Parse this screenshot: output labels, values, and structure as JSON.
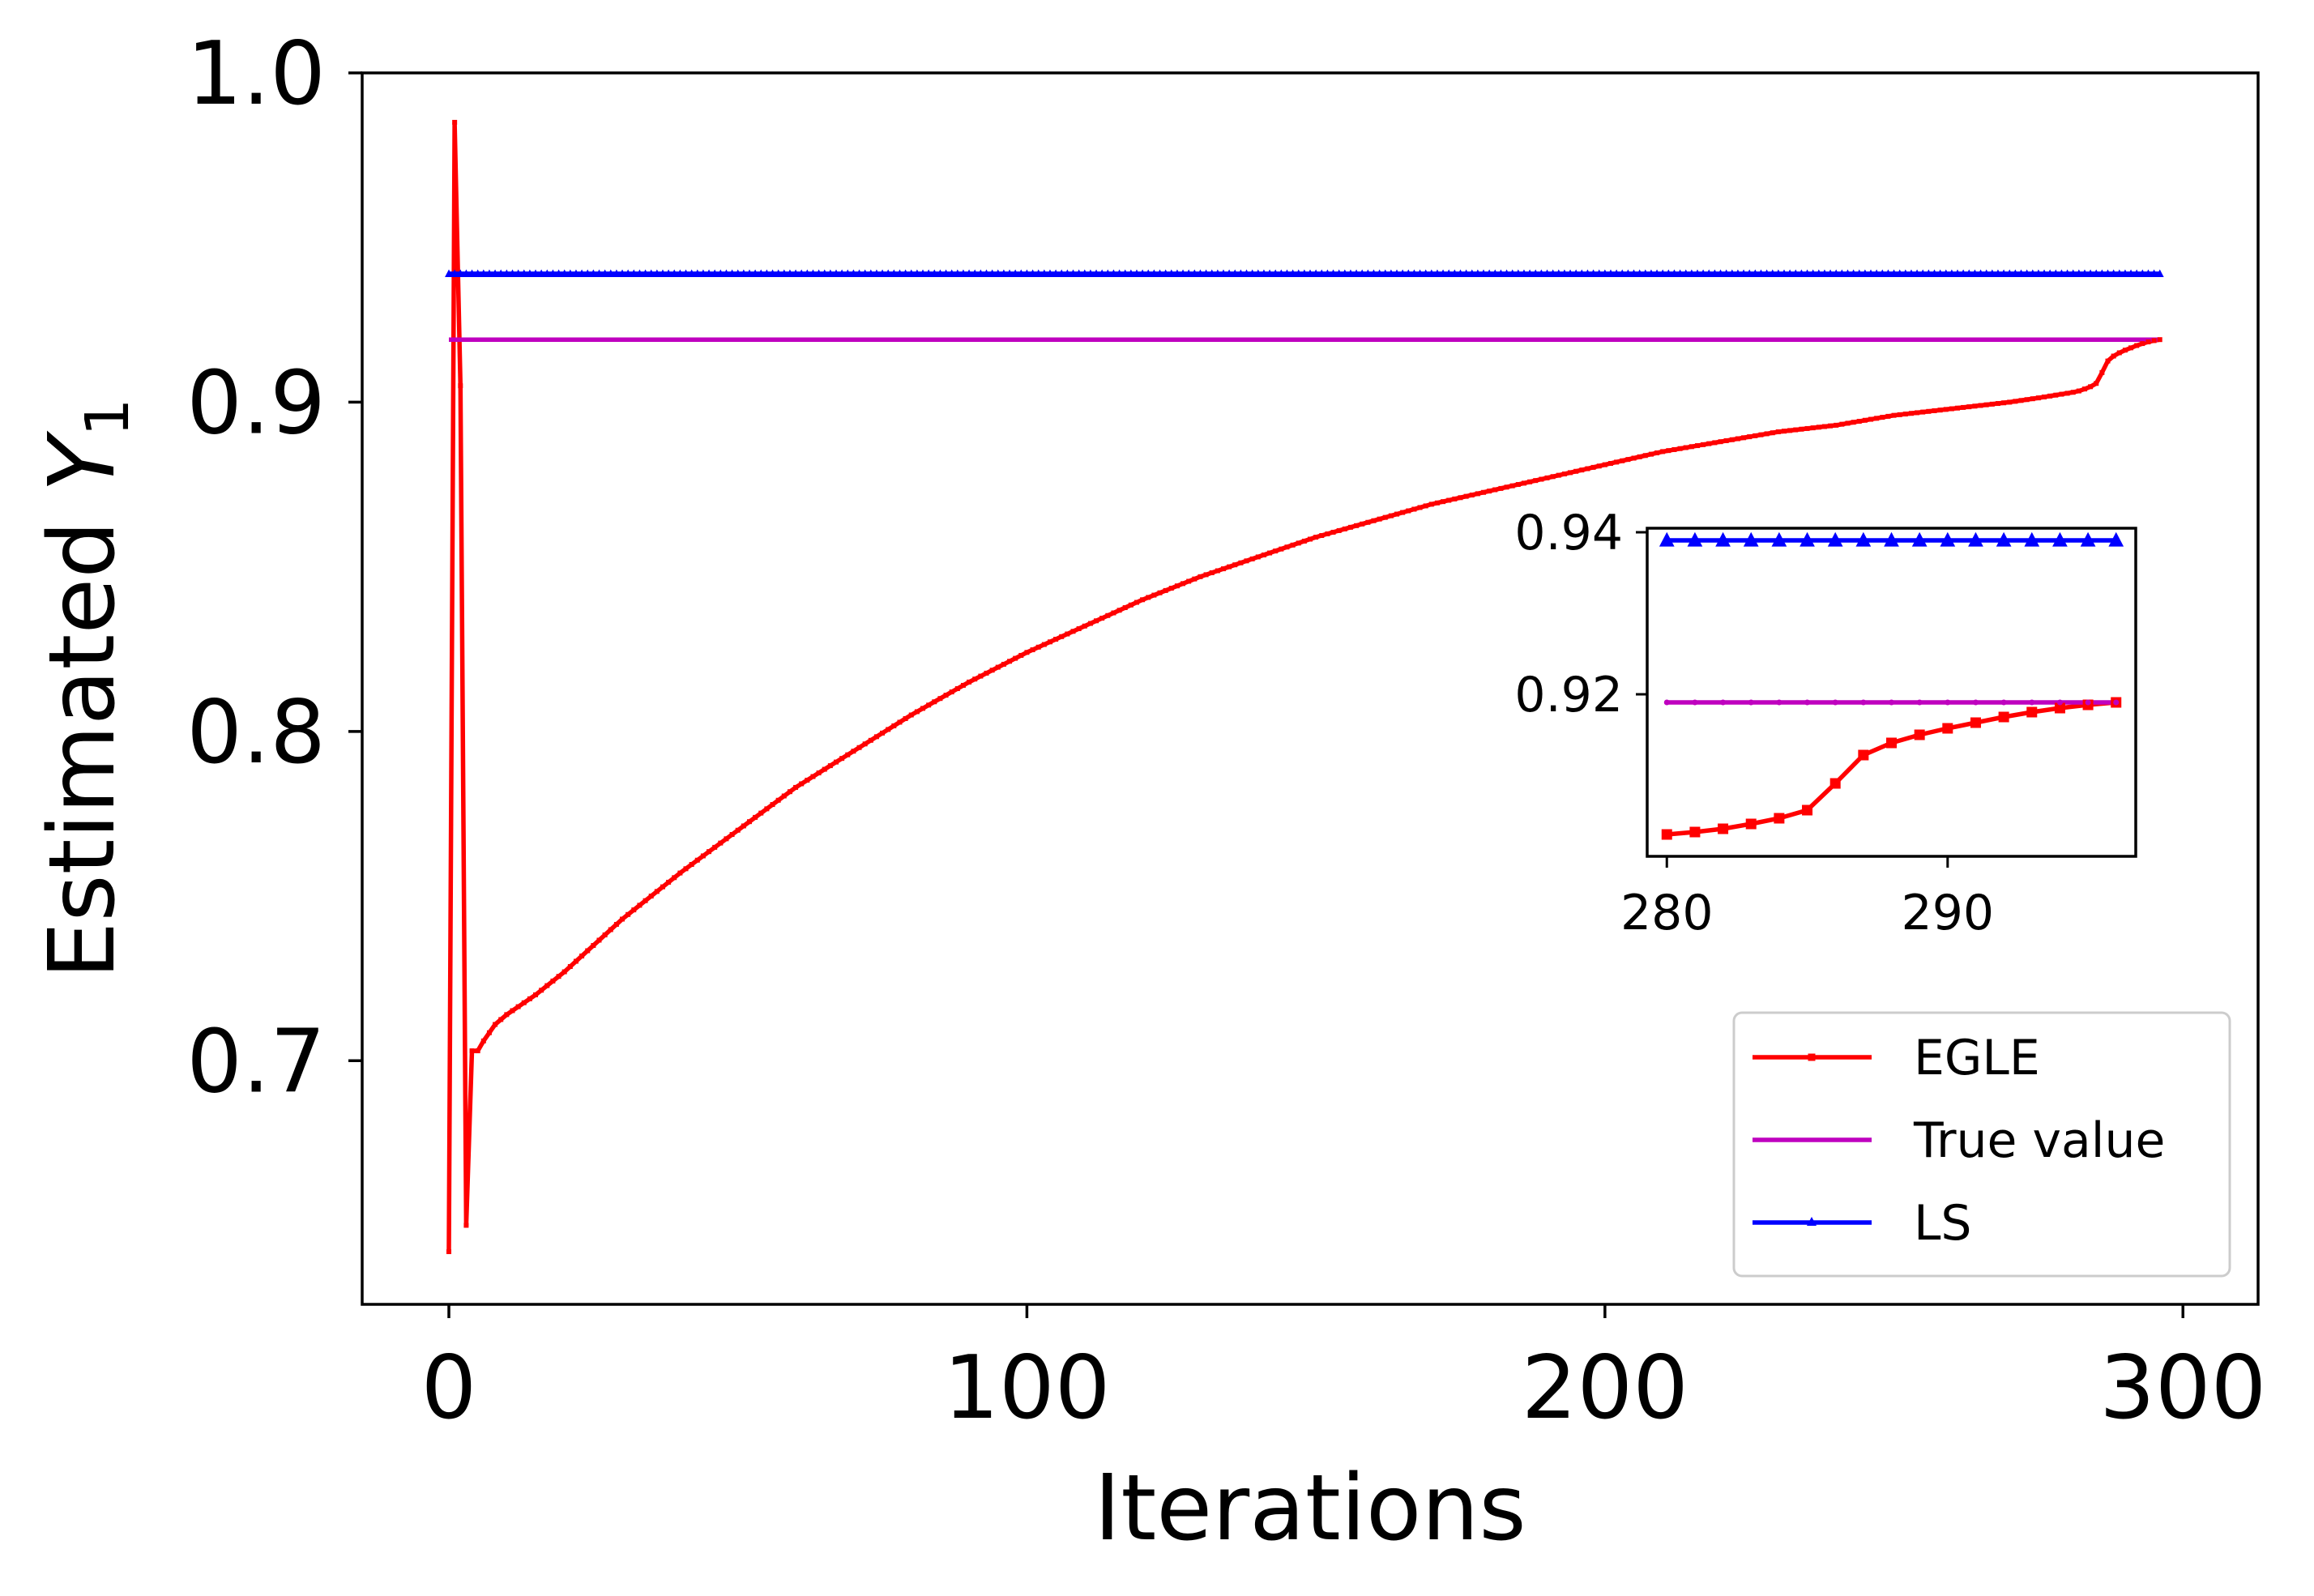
{
  "chart_data": {
    "type": "line",
    "xlabel": "Iterations",
    "ylabel_prefix": "Estimated  ",
    "ylabel_symbol": "Y",
    "ylabel_subscript": "1",
    "xlim": [
      -15,
      313
    ],
    "ylim": [
      0.626,
      1.0
    ],
    "xticks": [
      0,
      100,
      200,
      300
    ],
    "xtick_labels": [
      "0",
      "100",
      "200",
      "300"
    ],
    "yticks": [
      0.7,
      0.8,
      0.9,
      1.0
    ],
    "ytick_labels": [
      "0.7",
      "0.8",
      "0.9",
      "1.0"
    ],
    "legend_position": "lower-right",
    "series": [
      {
        "name": "EGLE",
        "color": "#ff0000",
        "marker": "square",
        "points": [
          [
            0,
            0.642
          ],
          [
            1,
            0.985
          ],
          [
            2,
            0.905
          ],
          [
            3,
            0.65
          ],
          [
            4,
            0.703
          ],
          [
            5,
            0.703
          ],
          [
            6,
            0.706
          ],
          [
            8,
            0.711
          ],
          [
            10,
            0.714
          ],
          [
            15,
            0.72
          ],
          [
            20,
            0.727
          ],
          [
            30,
            0.743
          ],
          [
            40,
            0.757
          ],
          [
            50,
            0.77
          ],
          [
            60,
            0.783
          ],
          [
            70,
            0.794
          ],
          [
            80,
            0.805
          ],
          [
            90,
            0.815
          ],
          [
            100,
            0.824
          ],
          [
            110,
            0.832
          ],
          [
            120,
            0.84
          ],
          [
            130,
            0.847
          ],
          [
            140,
            0.853
          ],
          [
            150,
            0.859
          ],
          [
            160,
            0.864
          ],
          [
            170,
            0.869
          ],
          [
            180,
            0.873
          ],
          [
            190,
            0.877
          ],
          [
            200,
            0.881
          ],
          [
            210,
            0.885
          ],
          [
            220,
            0.888
          ],
          [
            230,
            0.891
          ],
          [
            240,
            0.893
          ],
          [
            250,
            0.896
          ],
          [
            260,
            0.898
          ],
          [
            270,
            0.9
          ],
          [
            275,
            0.9013
          ],
          [
            280,
            0.9027
          ],
          [
            281,
            0.903
          ],
          [
            282,
            0.9034
          ],
          [
            283,
            0.904
          ],
          [
            284,
            0.9047
          ],
          [
            285,
            0.9057
          ],
          [
            286,
            0.909
          ],
          [
            287,
            0.9125
          ],
          [
            288,
            0.914
          ],
          [
            289,
            0.915
          ],
          [
            290,
            0.9158
          ],
          [
            291,
            0.9165
          ],
          [
            292,
            0.9172
          ],
          [
            293,
            0.9178
          ],
          [
            294,
            0.9183
          ],
          [
            295,
            0.9187
          ],
          [
            296,
            0.919
          ]
        ]
      },
      {
        "name": "True value",
        "color": "#bf00bf",
        "marker": "point",
        "points": [
          [
            0,
            0.919
          ],
          [
            296,
            0.919
          ]
        ]
      },
      {
        "name": "LS",
        "color": "#0000ff",
        "marker": "triangle",
        "points": [
          [
            0,
            0.939
          ],
          [
            296,
            0.939
          ]
        ]
      }
    ],
    "inset": {
      "xlim": [
        279.3,
        296.7
      ],
      "ylim": [
        0.9,
        0.9405
      ],
      "xticks": [
        280,
        290
      ],
      "xtick_labels": [
        "280",
        "290"
      ],
      "yticks": [
        0.92,
        0.94
      ],
      "ytick_labels": [
        "0.92",
        "0.94"
      ],
      "x_from": 280,
      "x_to": 296
    }
  }
}
